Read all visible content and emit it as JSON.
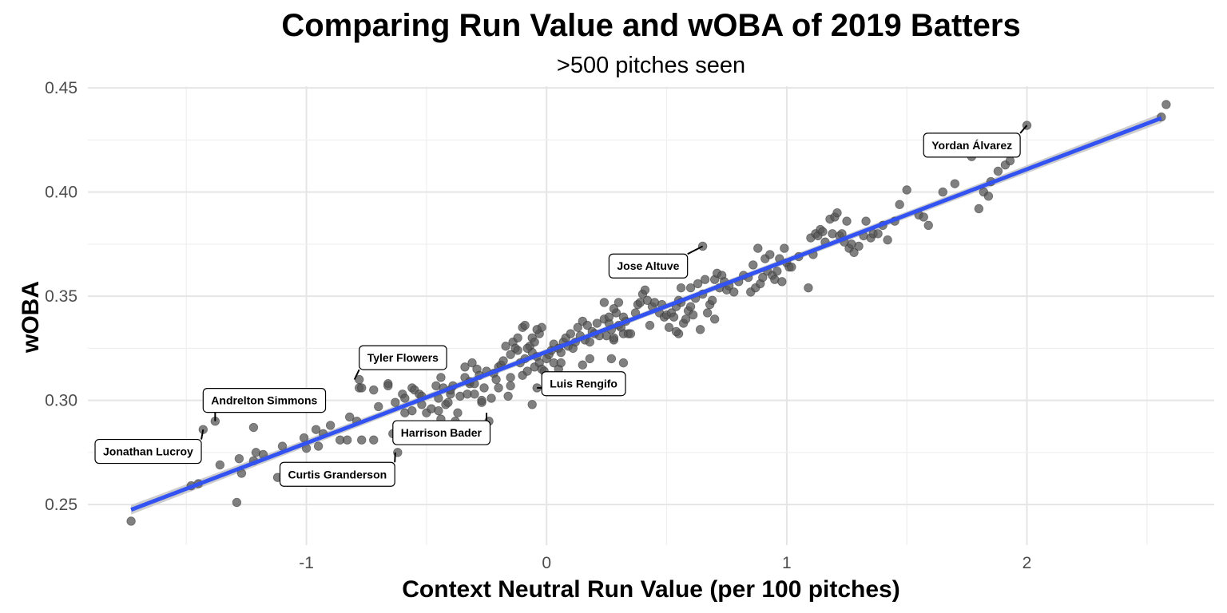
{
  "chart_data": {
    "type": "scatter",
    "title": "Comparing Run Value and wOBA of 2019 Batters",
    "subtitle": ">500 pitches seen",
    "xlabel": "Context Neutral Run Value (per 100 pitches)",
    "ylabel": "wOBA",
    "xlim": [
      -1.91,
      2.78
    ],
    "ylim": [
      0.2305,
      0.4508
    ],
    "x_ticks": [
      -1,
      0,
      1,
      2
    ],
    "x_tick_labels": [
      "-1",
      "0",
      "1",
      "2"
    ],
    "y_ticks": [
      0.25,
      0.3,
      0.35,
      0.4,
      0.45
    ],
    "y_tick_labels": [
      "0.25",
      "0.30",
      "0.35",
      "0.40",
      "0.45"
    ],
    "grid": true,
    "point_color": "#555555",
    "line_color": "#3352f2",
    "band_color": "#c8c8c8",
    "regression": {
      "x_start": -1.73,
      "x_end": 2.56,
      "y_start": 0.2475,
      "y_end": 0.4355
    },
    "points": [
      [
        -1.73,
        0.242
      ],
      [
        -1.48,
        0.259
      ],
      [
        -1.45,
        0.26
      ],
      [
        -1.43,
        0.286
      ],
      [
        -1.38,
        0.29
      ],
      [
        -1.36,
        0.269
      ],
      [
        -1.29,
        0.251
      ],
      [
        -1.28,
        0.272
      ],
      [
        -1.27,
        0.265
      ],
      [
        -1.22,
        0.287
      ],
      [
        -1.22,
        0.271
      ],
      [
        -1.21,
        0.275
      ],
      [
        -1.18,
        0.274
      ],
      [
        -1.12,
        0.263
      ],
      [
        -1.1,
        0.278
      ],
      [
        -1.01,
        0.282
      ],
      [
        -1.0,
        0.277
      ],
      [
        -0.96,
        0.286
      ],
      [
        -0.95,
        0.278
      ],
      [
        -0.93,
        0.284
      ],
      [
        -0.9,
        0.288
      ],
      [
        -0.86,
        0.281
      ],
      [
        -0.83,
        0.281
      ],
      [
        -0.82,
        0.292
      ],
      [
        -0.79,
        0.29
      ],
      [
        -0.78,
        0.31
      ],
      [
        -0.78,
        0.306
      ],
      [
        -0.77,
        0.306
      ],
      [
        -0.77,
        0.281
      ],
      [
        -0.72,
        0.305
      ],
      [
        -0.72,
        0.281
      ],
      [
        -0.7,
        0.297
      ],
      [
        -0.66,
        0.308
      ],
      [
        -0.66,
        0.307
      ],
      [
        -0.64,
        0.284
      ],
      [
        -0.63,
        0.299
      ],
      [
        -0.62,
        0.275
      ],
      [
        -0.6,
        0.303
      ],
      [
        -0.59,
        0.294
      ],
      [
        -0.59,
        0.301
      ],
      [
        -0.56,
        0.306
      ],
      [
        -0.56,
        0.295
      ],
      [
        -0.55,
        0.305
      ],
      [
        -0.53,
        0.303
      ],
      [
        -0.52,
        0.302
      ],
      [
        -0.52,
        0.298
      ],
      [
        -0.5,
        0.294
      ],
      [
        -0.48,
        0.296
      ],
      [
        -0.46,
        0.307
      ],
      [
        -0.45,
        0.295
      ],
      [
        -0.45,
        0.301
      ],
      [
        -0.44,
        0.311
      ],
      [
        -0.44,
        0.291
      ],
      [
        -0.43,
        0.306
      ],
      [
        -0.42,
        0.298
      ],
      [
        -0.41,
        0.299
      ],
      [
        -0.4,
        0.303
      ],
      [
        -0.4,
        0.305
      ],
      [
        -0.39,
        0.307
      ],
      [
        -0.38,
        0.29
      ],
      [
        -0.37,
        0.294
      ],
      [
        -0.36,
        0.302
      ],
      [
        -0.34,
        0.311
      ],
      [
        -0.34,
        0.316
      ],
      [
        -0.33,
        0.303
      ],
      [
        -0.32,
        0.308
      ],
      [
        -0.32,
        0.309
      ],
      [
        -0.31,
        0.318
      ],
      [
        -0.3,
        0.303
      ],
      [
        -0.3,
        0.308
      ],
      [
        -0.29,
        0.315
      ],
      [
        -0.28,
        0.312
      ],
      [
        -0.27,
        0.299
      ],
      [
        -0.27,
        0.3
      ],
      [
        -0.26,
        0.306
      ],
      [
        -0.25,
        0.314
      ],
      [
        -0.24,
        0.29
      ],
      [
        -0.23,
        0.301
      ],
      [
        -0.22,
        0.313
      ],
      [
        -0.21,
        0.31
      ],
      [
        -0.2,
        0.306
      ],
      [
        -0.2,
        0.316
      ],
      [
        -0.19,
        0.317
      ],
      [
        -0.18,
        0.319
      ],
      [
        -0.17,
        0.326
      ],
      [
        -0.16,
        0.302
      ],
      [
        -0.15,
        0.307
      ],
      [
        -0.15,
        0.311
      ],
      [
        -0.14,
        0.328
      ],
      [
        -0.13,
        0.325
      ],
      [
        -0.12,
        0.324
      ],
      [
        -0.11,
        0.318
      ],
      [
        -0.1,
        0.312
      ],
      [
        -0.09,
        0.32
      ],
      [
        -0.08,
        0.314
      ],
      [
        -0.07,
        0.326
      ],
      [
        -0.06,
        0.323
      ],
      [
        -0.05,
        0.316
      ],
      [
        -0.04,
        0.321
      ],
      [
        -0.03,
        0.318
      ],
      [
        -0.02,
        0.315
      ],
      [
        -0.01,
        0.314
      ],
      [
        0.0,
        0.32
      ],
      [
        0.01,
        0.322
      ],
      [
        0.02,
        0.324
      ],
      [
        0.03,
        0.327
      ],
      [
        0.05,
        0.325
      ],
      [
        0.06,
        0.323
      ],
      [
        0.07,
        0.328
      ],
      [
        0.08,
        0.33
      ],
      [
        0.09,
        0.326
      ],
      [
        0.1,
        0.332
      ],
      [
        0.11,
        0.325
      ],
      [
        0.12,
        0.328
      ],
      [
        0.13,
        0.335
      ],
      [
        0.14,
        0.331
      ],
      [
        0.15,
        0.338
      ],
      [
        0.16,
        0.329
      ],
      [
        0.17,
        0.336
      ],
      [
        0.18,
        0.328
      ],
      [
        0.19,
        0.333
      ],
      [
        -0.08,
        0.325
      ],
      [
        -0.06,
        0.33
      ],
      [
        -0.05,
        0.328
      ],
      [
        -0.03,
        0.332
      ],
      [
        -0.02,
        0.335
      ],
      [
        -0.15,
        0.322
      ],
      [
        -0.12,
        0.33
      ],
      [
        -0.1,
        0.335
      ],
      [
        -0.09,
        0.336
      ],
      [
        -0.04,
        0.334
      ],
      [
        0.03,
        0.318
      ],
      [
        0.05,
        0.315
      ],
      [
        0.06,
        0.318
      ],
      [
        0.07,
        0.31
      ],
      [
        0.15,
        0.317
      ],
      [
        0.18,
        0.32
      ],
      [
        0.2,
        0.332
      ],
      [
        0.21,
        0.337
      ],
      [
        0.22,
        0.331
      ],
      [
        0.24,
        0.339
      ],
      [
        0.25,
        0.331
      ],
      [
        0.26,
        0.337
      ],
      [
        0.27,
        0.334
      ],
      [
        0.28,
        0.329
      ],
      [
        0.29,
        0.342
      ],
      [
        0.3,
        0.336
      ],
      [
        0.31,
        0.335
      ],
      [
        0.32,
        0.332
      ],
      [
        0.33,
        0.338
      ],
      [
        0.34,
        0.332
      ],
      [
        0.35,
        0.332
      ],
      [
        0.28,
        0.344
      ],
      [
        0.3,
        0.347
      ],
      [
        0.32,
        0.34
      ],
      [
        0.26,
        0.34
      ],
      [
        0.24,
        0.347
      ],
      [
        0.28,
        0.33
      ],
      [
        0.27,
        0.32
      ],
      [
        0.32,
        0.318
      ],
      [
        -0.04,
        0.306
      ],
      [
        -0.06,
        0.298
      ],
      [
        0.37,
        0.342
      ],
      [
        0.38,
        0.346
      ],
      [
        0.39,
        0.347
      ],
      [
        0.4,
        0.351
      ],
      [
        0.41,
        0.353
      ],
      [
        0.42,
        0.348
      ],
      [
        0.43,
        0.336
      ],
      [
        0.44,
        0.345
      ],
      [
        0.45,
        0.347
      ],
      [
        0.47,
        0.342
      ],
      [
        0.48,
        0.346
      ],
      [
        0.49,
        0.34
      ],
      [
        0.5,
        0.341
      ],
      [
        0.51,
        0.335
      ],
      [
        0.52,
        0.342
      ],
      [
        0.53,
        0.34
      ],
      [
        0.54,
        0.345
      ],
      [
        0.55,
        0.348
      ],
      [
        0.56,
        0.347
      ],
      [
        0.57,
        0.337
      ],
      [
        0.58,
        0.339
      ],
      [
        0.55,
        0.332
      ],
      [
        0.54,
        0.333
      ],
      [
        0.59,
        0.343
      ],
      [
        0.6,
        0.345
      ],
      [
        0.61,
        0.341
      ],
      [
        0.62,
        0.349
      ],
      [
        0.63,
        0.356
      ],
      [
        0.64,
        0.334
      ],
      [
        0.65,
        0.351
      ],
      [
        0.66,
        0.358
      ],
      [
        0.67,
        0.342
      ],
      [
        0.68,
        0.346
      ],
      [
        0.69,
        0.348
      ],
      [
        0.7,
        0.358
      ],
      [
        0.71,
        0.361
      ],
      [
        0.72,
        0.354
      ],
      [
        0.73,
        0.36
      ],
      [
        0.74,
        0.357
      ],
      [
        0.75,
        0.353
      ],
      [
        0.76,
        0.355
      ],
      [
        0.78,
        0.352
      ],
      [
        0.8,
        0.357
      ],
      [
        0.82,
        0.36
      ],
      [
        0.84,
        0.359
      ],
      [
        0.85,
        0.352
      ],
      [
        0.86,
        0.365
      ],
      [
        0.87,
        0.354
      ],
      [
        0.88,
        0.373
      ],
      [
        0.89,
        0.356
      ],
      [
        0.9,
        0.359
      ],
      [
        0.91,
        0.368
      ],
      [
        0.92,
        0.362
      ],
      [
        0.93,
        0.37
      ],
      [
        0.94,
        0.36
      ],
      [
        0.95,
        0.358
      ],
      [
        0.96,
        0.362
      ],
      [
        0.97,
        0.368
      ],
      [
        0.98,
        0.357
      ],
      [
        0.99,
        0.373
      ],
      [
        1.0,
        0.366
      ],
      [
        1.01,
        0.364
      ],
      [
        1.02,
        0.364
      ],
      [
        1.05,
        0.369
      ],
      [
        0.7,
        0.339
      ],
      [
        0.65,
        0.374
      ],
      [
        0.6,
        0.354
      ],
      [
        0.56,
        0.354
      ],
      [
        1.09,
        0.354
      ],
      [
        1.1,
        0.378
      ],
      [
        1.11,
        0.37
      ],
      [
        1.12,
        0.38
      ],
      [
        1.13,
        0.379
      ],
      [
        1.14,
        0.382
      ],
      [
        1.15,
        0.381
      ],
      [
        1.16,
        0.376
      ],
      [
        1.18,
        0.387
      ],
      [
        1.19,
        0.38
      ],
      [
        1.2,
        0.388
      ],
      [
        1.21,
        0.39
      ],
      [
        1.22,
        0.379
      ],
      [
        1.23,
        0.38
      ],
      [
        1.24,
        0.376
      ],
      [
        1.25,
        0.386
      ],
      [
        1.26,
        0.373
      ],
      [
        1.27,
        0.375
      ],
      [
        1.28,
        0.371
      ],
      [
        1.3,
        0.374
      ],
      [
        1.32,
        0.379
      ],
      [
        1.33,
        0.386
      ],
      [
        1.35,
        0.378
      ],
      [
        1.36,
        0.38
      ],
      [
        1.38,
        0.38
      ],
      [
        1.4,
        0.384
      ],
      [
        1.42,
        0.377
      ],
      [
        1.45,
        0.386
      ],
      [
        1.47,
        0.394
      ],
      [
        1.5,
        0.401
      ],
      [
        1.55,
        0.389
      ],
      [
        1.57,
        0.388
      ],
      [
        1.59,
        0.384
      ],
      [
        1.65,
        0.4
      ],
      [
        1.7,
        0.404
      ],
      [
        1.77,
        0.417
      ],
      [
        1.8,
        0.392
      ],
      [
        1.82,
        0.4
      ],
      [
        1.84,
        0.398
      ],
      [
        1.85,
        0.405
      ],
      [
        1.88,
        0.41
      ],
      [
        1.91,
        0.413
      ],
      [
        1.93,
        0.415
      ],
      [
        2.0,
        0.432
      ],
      [
        2.56,
        0.436
      ],
      [
        2.58,
        0.442
      ]
    ],
    "annotations": [
      {
        "label": "Yordan Álvarez",
        "x": 2.0,
        "y": 0.432,
        "lx": 1.57,
        "ly": 0.4225
      },
      {
        "label": "Jose Altuve",
        "x": 0.65,
        "y": 0.374,
        "lx": 0.26,
        "ly": 0.3645
      },
      {
        "label": "Tyler Flowers",
        "x": -0.8,
        "y": 0.31,
        "lx": -0.78,
        "ly": 0.3205
      },
      {
        "label": "Luis Rengifo",
        "x": -0.04,
        "y": 0.306,
        "lx": -0.02,
        "ly": 0.308
      },
      {
        "label": "Andrelton Simmons",
        "x": -1.38,
        "y": 0.29,
        "lx": -1.43,
        "ly": 0.3
      },
      {
        "label": "Harrison Bader",
        "x": -0.25,
        "y": 0.294,
        "lx": -0.64,
        "ly": 0.2845
      },
      {
        "label": "Jonathan Lucroy",
        "x": -1.43,
        "y": 0.286,
        "lx": -1.88,
        "ly": 0.2755
      },
      {
        "label": "Curtis Granderson",
        "x": -0.63,
        "y": 0.275,
        "lx": -1.11,
        "ly": 0.2645
      }
    ]
  }
}
